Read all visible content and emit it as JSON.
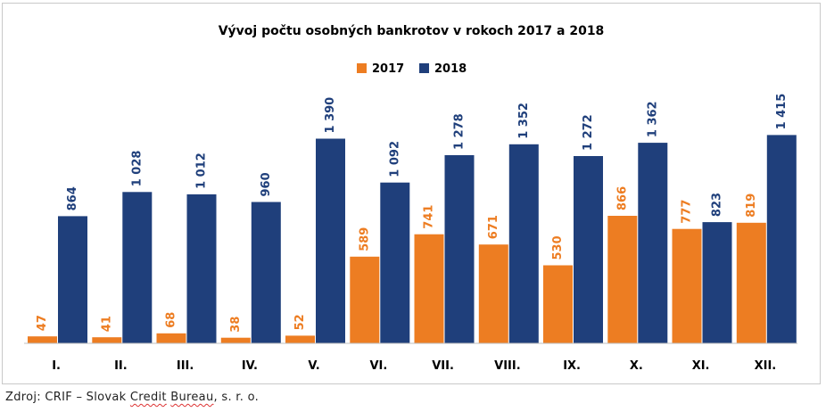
{
  "colors": {
    "series_2017": "#ED7D22",
    "series_2018": "#1F3F7B",
    "axis": "#BFBFBF",
    "text": "#000000"
  },
  "source": {
    "prefix": "Zdroj: CRIF – Slovak ",
    "underlined_1": "Credit",
    "space_1": " ",
    "underlined_2": "Bureau",
    "suffix": ", s. r. o."
  },
  "chart_data": {
    "type": "bar",
    "title": "Vývoj počtu osobných bankrotov v rokoch 2017 a 2018",
    "categories": [
      "I.",
      "II.",
      "III.",
      "IV.",
      "V.",
      "VI.",
      "VII.",
      "VIII.",
      "IX.",
      "X.",
      "XI.",
      "XII."
    ],
    "series": [
      {
        "name": "2017",
        "values": [
          47,
          41,
          68,
          38,
          52,
          589,
          741,
          671,
          530,
          866,
          777,
          819
        ],
        "labels": [
          "47",
          "41",
          "68",
          "38",
          "52",
          "589",
          "741",
          "671",
          "530",
          "866",
          "777",
          "819"
        ]
      },
      {
        "name": "2018",
        "values": [
          864,
          1028,
          1012,
          960,
          1390,
          1092,
          1278,
          1352,
          1272,
          1362,
          823,
          1415
        ],
        "labels": [
          "864",
          "1 028",
          "1 012",
          "960",
          "1 390",
          "1 092",
          "1 278",
          "1 352",
          "1 272",
          "1 362",
          "823",
          "1 415"
        ]
      }
    ],
    "legend_position": "top-center",
    "grid": false
  }
}
